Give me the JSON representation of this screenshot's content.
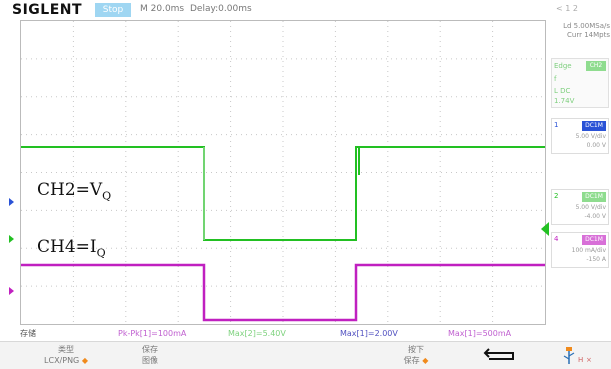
{
  "header": {
    "brand": "SIGLENT",
    "run_state": "Stop",
    "timebase": "M 20.0ms",
    "delay": "Delay:0.00ms",
    "top_right": "< 1 2"
  },
  "side_info": {
    "line1": "Ld 5.00MSa/s",
    "line2": "Curr 14Mpts"
  },
  "acquire": {
    "label": "Edge",
    "badge": "CH2",
    "line2": "f",
    "line3": "L DC",
    "level": "1.74V"
  },
  "channels": [
    {
      "num": "1",
      "coupling": "DC1M",
      "scale": "5.00 V/div",
      "offset": "0.00 V",
      "color": "#2a52d6"
    },
    {
      "num": "2",
      "coupling": "DC1M",
      "scale": "5.00 V/div",
      "offset": "-4.00 V",
      "color": "#2bd12b"
    },
    {
      "num": "4",
      "coupling": "DC1M",
      "scale": "100 mA/div",
      "offset": "-150 A",
      "color": "#d43ad4"
    }
  ],
  "traces": {
    "ch2_label": "CH2=V",
    "ch2_sub": "Q",
    "ch4_label": "CH4=I",
    "ch4_sub": "Q"
  },
  "measurements": [
    {
      "text": "存储",
      "color": "#555555"
    },
    {
      "text": "Pk-Pk[1]=100mA",
      "color": "#c060d0"
    },
    {
      "text": "Max[2]=5.40V",
      "color": "#7ed27e"
    },
    {
      "text": "Max[1]=2.00V",
      "color": "#5050c0"
    },
    {
      "text": "Max[1]=500mA",
      "color": "#c060d0"
    }
  ],
  "softkeys": [
    {
      "line1": "类型",
      "line2": "LCX/PNG"
    },
    {
      "line1": "保存",
      "line2": "图像"
    },
    {
      "line1": "按下",
      "line2": "保存"
    }
  ],
  "colors": {
    "ch2": "#22c022",
    "ch4": "#c020c0",
    "ch1": "#2a52d6",
    "accent": "#f08a1c",
    "grid": "#c8c8c8"
  },
  "icons": {
    "return": "return-arrow-icon",
    "usb": "usb-icon"
  }
}
